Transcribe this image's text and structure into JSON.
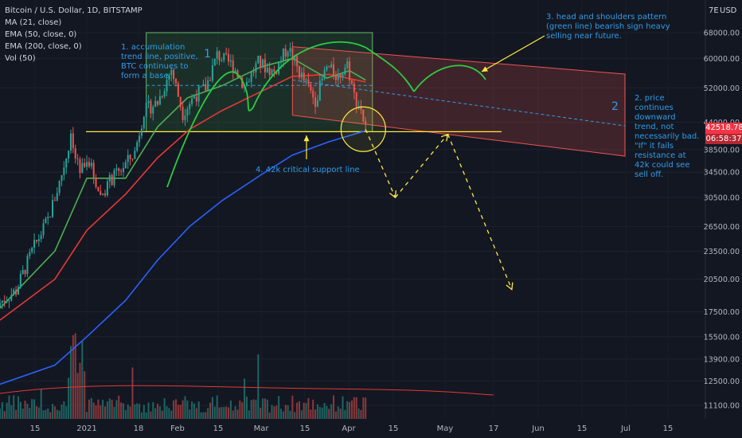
{
  "header": {
    "symbol_title": "Bitcoin / U.S. Dollar, 1D, BITSTAMP",
    "indicators": [
      "MA (21, close)",
      "EMA (50, close, 0)",
      "EMA (200, close, 0)",
      "Vol (50)"
    ]
  },
  "axis": {
    "currency": "USD",
    "right_top_label": "7E",
    "price_ticks": [
      68000,
      60000,
      52000,
      44000,
      38500,
      34500,
      30500,
      26500,
      23500,
      20500,
      17500,
      15500,
      13900,
      12500,
      11100
    ],
    "price_tick_labels": [
      "68000.00",
      "60000.00",
      "52000.00",
      "44000.00",
      "38500.00",
      "34500.00",
      "30500.00",
      "26500.00",
      "23500.00",
      "20500.00",
      "17500.00",
      "15500.00",
      "13900.00",
      "12500.00",
      "11100.00"
    ],
    "time_labels": [
      "15",
      "2021",
      "18",
      "Feb",
      "15",
      "Mar",
      "15",
      "Apr",
      "15",
      "May",
      "17",
      "Jun",
      "15",
      "Jul",
      "15"
    ]
  },
  "price_badge": {
    "price": "42518.78",
    "countdown": "06:58:37"
  },
  "annotations": {
    "note1": "1. accumulation trend line, positive, BTC continues to form a base.",
    "note2": "2. price continues downward trend, not necessarily bad. \"If\" it fails resistance at 42k could see sell off.",
    "note3": "3. head and shoulders pattern (green line) bearish sign heavy selling near future.",
    "note4": "4. 42k critical support line",
    "box1_label": "1",
    "box2_label": "2"
  },
  "colors": {
    "background": "#131722",
    "up": "#26a69a",
    "down": "#ef5350",
    "ma21": "#4caf50",
    "ema50": "#e53935",
    "ema200": "#2962ff",
    "support": "#ffeb3b",
    "annotation": "#2e9de8",
    "badge": "#f23645"
  },
  "chart_data": {
    "type": "candlestick",
    "title": "Bitcoin / U.S. Dollar, 1D, BITSTAMP",
    "y_scale": "log",
    "ylim": [
      10500,
      78000
    ],
    "current_price": 42518.78,
    "support_level": 42000,
    "close_path": [
      {
        "date": "2020-12-08",
        "close": 18300
      },
      {
        "date": "2020-12-15",
        "close": 19400
      },
      {
        "date": "2020-12-22",
        "close": 23500
      },
      {
        "date": "2020-12-29",
        "close": 27400
      },
      {
        "date": "2021-01-03",
        "close": 32800
      },
      {
        "date": "2021-01-08",
        "close": 40500
      },
      {
        "date": "2021-01-12",
        "close": 34000
      },
      {
        "date": "2021-01-15",
        "close": 37500
      },
      {
        "date": "2021-01-21",
        "close": 30800
      },
      {
        "date": "2021-01-25",
        "close": 33000
      },
      {
        "date": "2021-01-29",
        "close": 34500
      },
      {
        "date": "2021-02-05",
        "close": 38000
      },
      {
        "date": "2021-02-09",
        "close": 46500
      },
      {
        "date": "2021-02-15",
        "close": 48500
      },
      {
        "date": "2021-02-21",
        "close": 57000
      },
      {
        "date": "2021-02-26",
        "close": 46000
      },
      {
        "date": "2021-03-03",
        "close": 50000
      },
      {
        "date": "2021-03-08",
        "close": 52000
      },
      {
        "date": "2021-03-13",
        "close": 61000
      },
      {
        "date": "2021-03-20",
        "close": 58000
      },
      {
        "date": "2021-03-25",
        "close": 52500
      },
      {
        "date": "2021-03-31",
        "close": 58800
      },
      {
        "date": "2021-04-07",
        "close": 56000
      },
      {
        "date": "2021-04-13",
        "close": 63500
      },
      {
        "date": "2021-04-18",
        "close": 56000
      },
      {
        "date": "2021-04-25",
        "close": 49000
      },
      {
        "date": "2021-04-30",
        "close": 57500
      },
      {
        "date": "2021-05-05",
        "close": 55000
      },
      {
        "date": "2021-05-09",
        "close": 58500
      },
      {
        "date": "2021-05-12",
        "close": 50000
      },
      {
        "date": "2021-05-15",
        "close": 47000
      },
      {
        "date": "2021-05-17",
        "close": 42518.78
      }
    ],
    "ma21": [
      {
        "date": "2020-12-08",
        "value": 17800
      },
      {
        "date": "2021-01-01",
        "value": 23500
      },
      {
        "date": "2021-01-15",
        "value": 33500
      },
      {
        "date": "2021-02-01",
        "value": 33500
      },
      {
        "date": "2021-02-15",
        "value": 43000
      },
      {
        "date": "2021-02-28",
        "value": 49500
      },
      {
        "date": "2021-03-15",
        "value": 52500
      },
      {
        "date": "2021-04-01",
        "value": 57500
      },
      {
        "date": "2021-04-15",
        "value": 60000
      },
      {
        "date": "2021-04-30",
        "value": 54500
      },
      {
        "date": "2021-05-10",
        "value": 56500
      },
      {
        "date": "2021-05-17",
        "value": 54000
      }
    ],
    "ema50": [
      {
        "date": "2020-12-08",
        "value": 16800
      },
      {
        "date": "2021-01-01",
        "value": 20500
      },
      {
        "date": "2021-01-15",
        "value": 26000
      },
      {
        "date": "2021-02-01",
        "value": 31000
      },
      {
        "date": "2021-02-15",
        "value": 37000
      },
      {
        "date": "2021-03-01",
        "value": 42500
      },
      {
        "date": "2021-03-15",
        "value": 46500
      },
      {
        "date": "2021-04-01",
        "value": 51000
      },
      {
        "date": "2021-04-15",
        "value": 55000
      },
      {
        "date": "2021-05-01",
        "value": 55500
      },
      {
        "date": "2021-05-17",
        "value": 53500
      }
    ],
    "ema200": [
      {
        "date": "2020-12-08",
        "value": 12300
      },
      {
        "date": "2021-01-01",
        "value": 13500
      },
      {
        "date": "2021-01-15",
        "value": 15500
      },
      {
        "date": "2021-02-01",
        "value": 18500
      },
      {
        "date": "2021-02-15",
        "value": 22500
      },
      {
        "date": "2021-03-01",
        "value": 26500
      },
      {
        "date": "2021-03-15",
        "value": 30000
      },
      {
        "date": "2021-04-01",
        "value": 34000
      },
      {
        "date": "2021-04-15",
        "value": 37500
      },
      {
        "date": "2021-05-01",
        "value": 40000
      },
      {
        "date": "2021-05-17",
        "value": 42200
      }
    ],
    "projection": [
      {
        "date": "2021-05-17",
        "value": 42500
      },
      {
        "date": "2021-05-30",
        "value": 30500
      },
      {
        "date": "2021-06-22",
        "value": 41500
      },
      {
        "date": "2021-07-20",
        "value": 19500
      }
    ]
  }
}
